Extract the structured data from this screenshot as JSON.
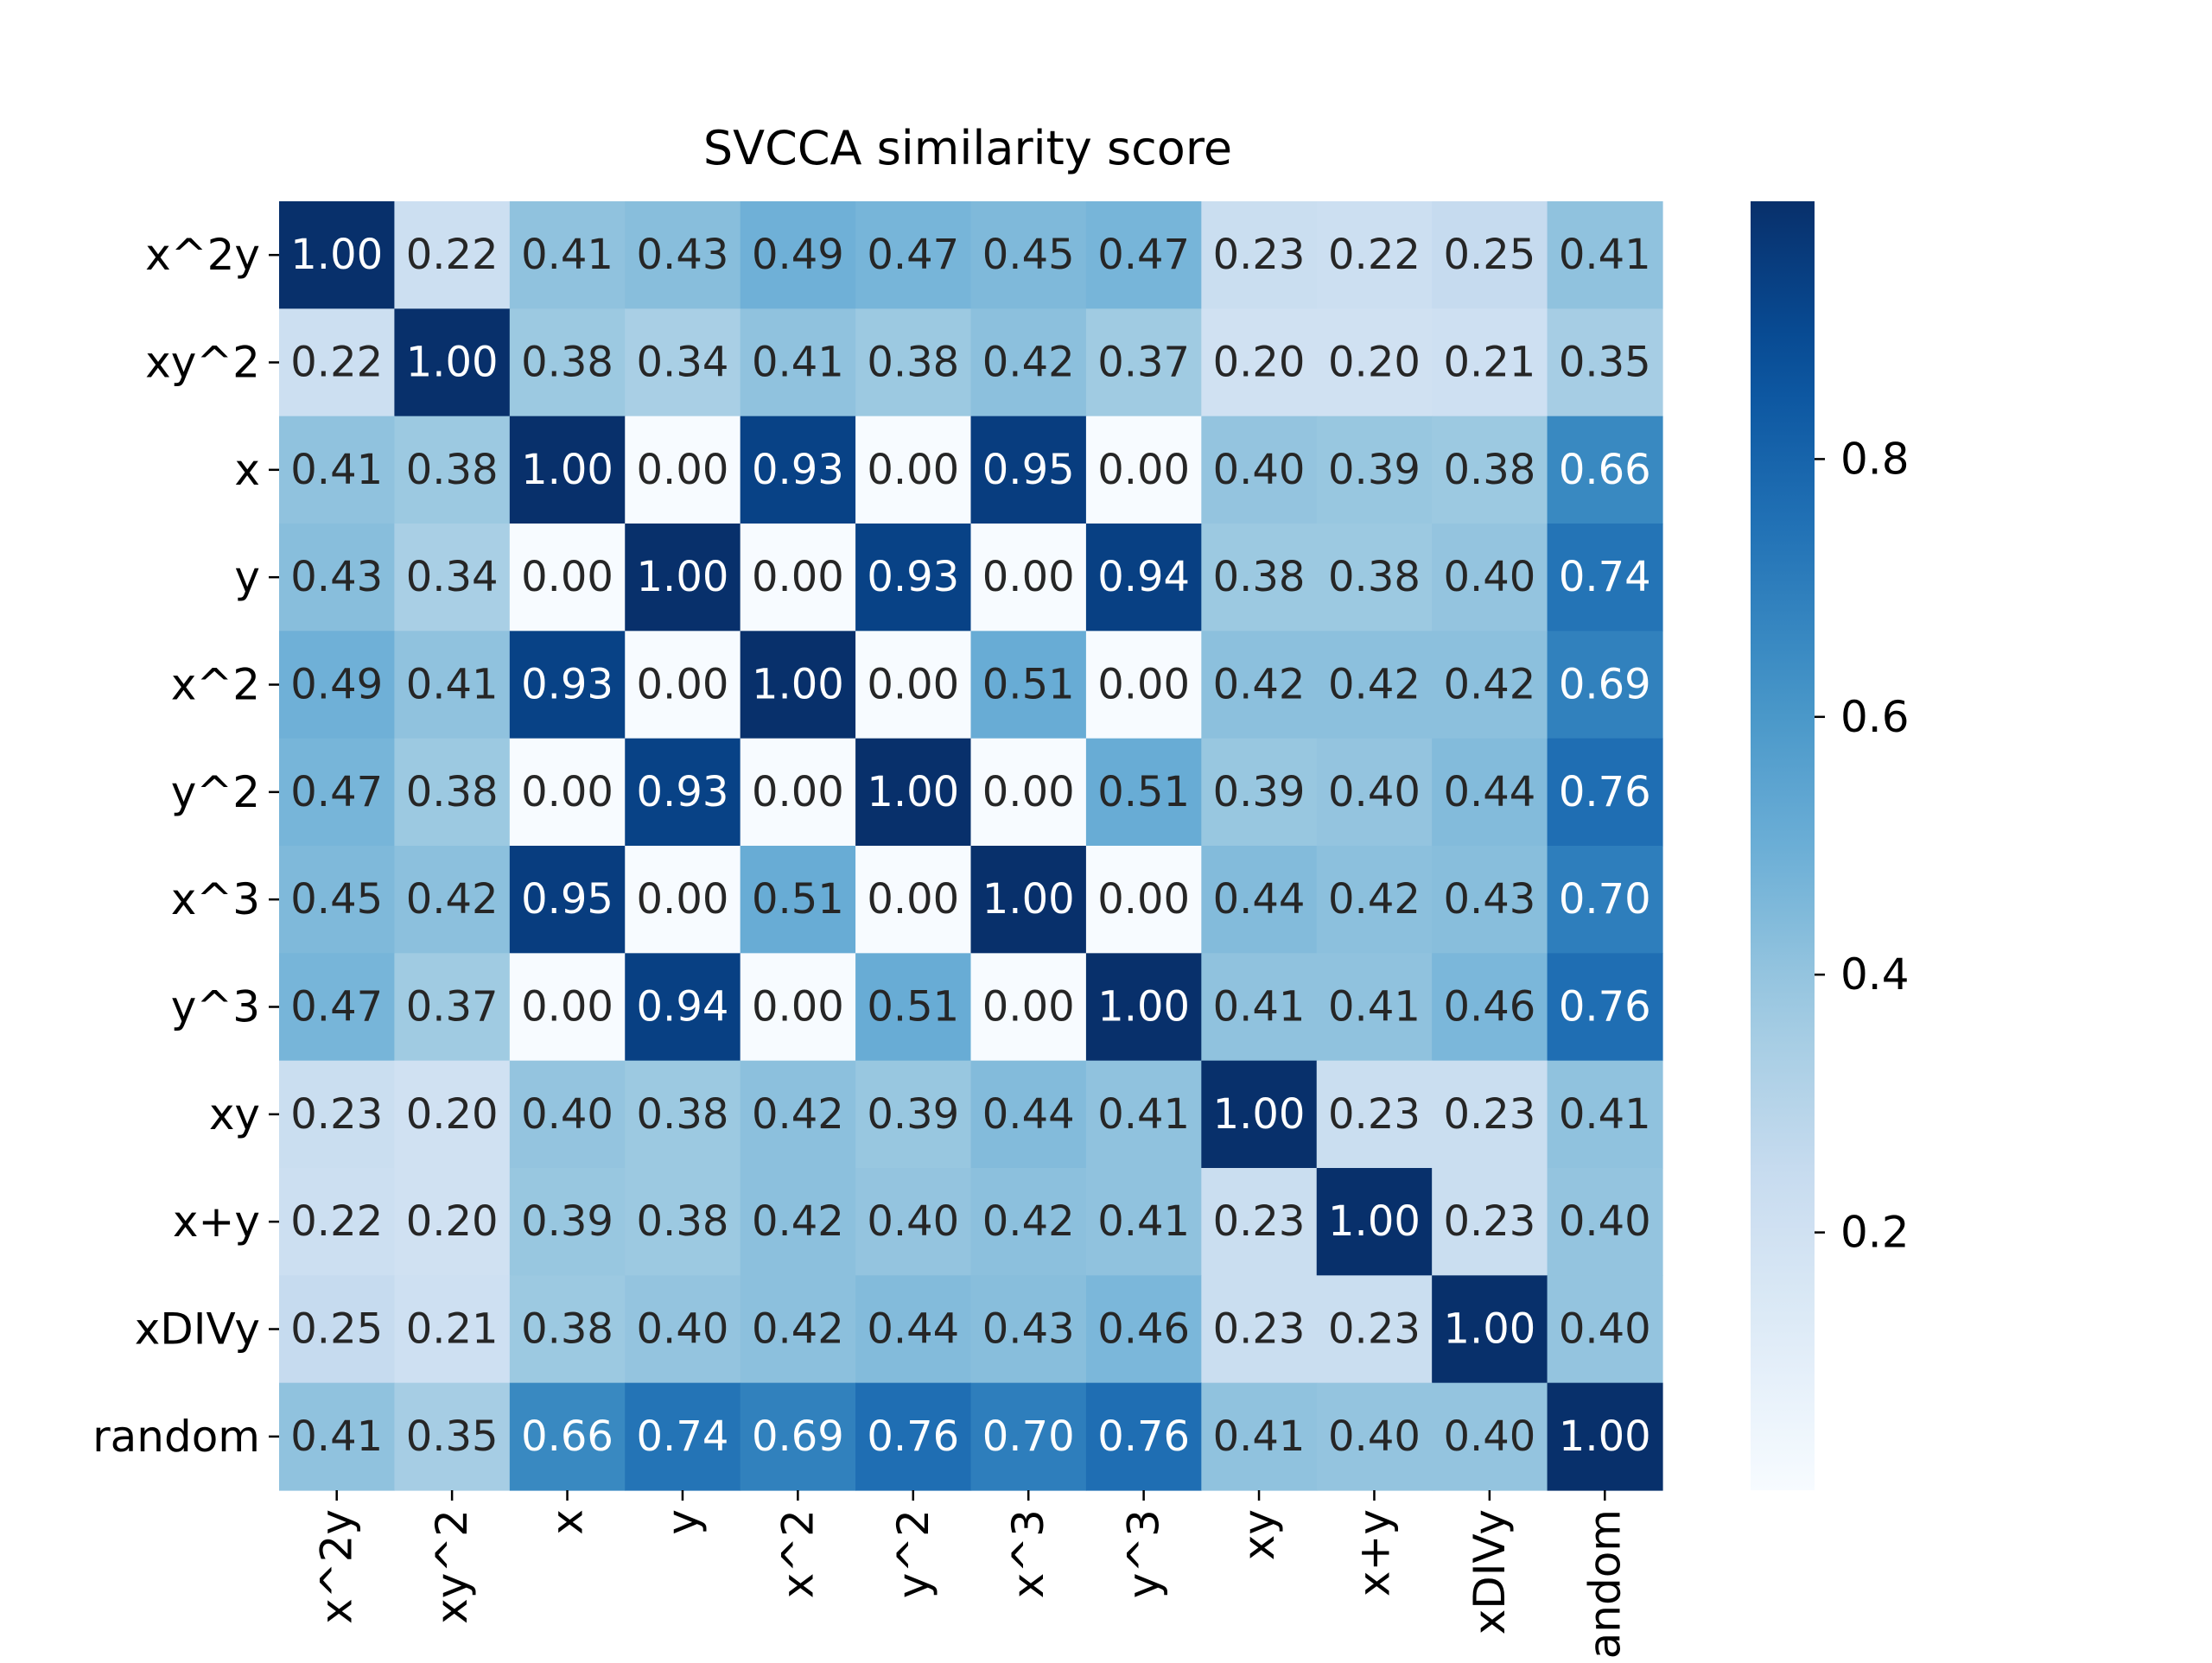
{
  "chart_data": {
    "type": "heatmap",
    "title": "SVCCA similarity score",
    "row_labels": [
      "x^2y",
      "xy^2",
      "x",
      "y",
      "x^2",
      "y^2",
      "x^3",
      "y^3",
      "xy",
      "x+y",
      "xDIVy",
      "random"
    ],
    "col_labels": [
      "x^2y",
      "xy^2",
      "x",
      "y",
      "x^2",
      "y^2",
      "x^3",
      "y^3",
      "xy",
      "x+y",
      "xDIVy",
      "random"
    ],
    "values": [
      [
        1.0,
        0.22,
        0.41,
        0.43,
        0.49,
        0.47,
        0.45,
        0.47,
        0.23,
        0.22,
        0.25,
        0.41
      ],
      [
        0.22,
        1.0,
        0.38,
        0.34,
        0.41,
        0.38,
        0.42,
        0.37,
        0.2,
        0.2,
        0.21,
        0.35
      ],
      [
        0.41,
        0.38,
        1.0,
        0.0,
        0.93,
        0.0,
        0.95,
        0.0,
        0.4,
        0.39,
        0.38,
        0.66
      ],
      [
        0.43,
        0.34,
        0.0,
        1.0,
        0.0,
        0.93,
        0.0,
        0.94,
        0.38,
        0.38,
        0.4,
        0.74
      ],
      [
        0.49,
        0.41,
        0.93,
        0.0,
        1.0,
        0.0,
        0.51,
        0.0,
        0.42,
        0.42,
        0.42,
        0.69
      ],
      [
        0.47,
        0.38,
        0.0,
        0.93,
        0.0,
        1.0,
        0.0,
        0.51,
        0.39,
        0.4,
        0.44,
        0.76
      ],
      [
        0.45,
        0.42,
        0.95,
        0.0,
        0.51,
        0.0,
        1.0,
        0.0,
        0.44,
        0.42,
        0.43,
        0.7
      ],
      [
        0.47,
        0.37,
        0.0,
        0.94,
        0.0,
        0.51,
        0.0,
        1.0,
        0.41,
        0.41,
        0.46,
        0.76
      ],
      [
        0.23,
        0.2,
        0.4,
        0.38,
        0.42,
        0.39,
        0.44,
        0.41,
        1.0,
        0.23,
        0.23,
        0.41
      ],
      [
        0.22,
        0.2,
        0.39,
        0.38,
        0.42,
        0.4,
        0.42,
        0.41,
        0.23,
        1.0,
        0.23,
        0.4
      ],
      [
        0.25,
        0.21,
        0.38,
        0.4,
        0.42,
        0.44,
        0.43,
        0.46,
        0.23,
        0.23,
        1.0,
        0.4
      ],
      [
        0.41,
        0.35,
        0.66,
        0.74,
        0.69,
        0.76,
        0.7,
        0.76,
        0.41,
        0.4,
        0.4,
        1.0
      ]
    ],
    "value_format": "2 decimals",
    "colormap": "Blues",
    "colors": {
      "low": "#f7fbff",
      "high": "#08306b",
      "annotation_dark": "#262626",
      "annotation_light": "#ffffff"
    },
    "vmin": 0.0,
    "vmax": 1.0,
    "colorbar": {
      "ticks": [
        0.2,
        0.4,
        0.6,
        0.8
      ],
      "tick_labels": [
        "0.2",
        "0.4",
        "0.6",
        "0.8"
      ],
      "position": "right"
    },
    "grid": false
  }
}
